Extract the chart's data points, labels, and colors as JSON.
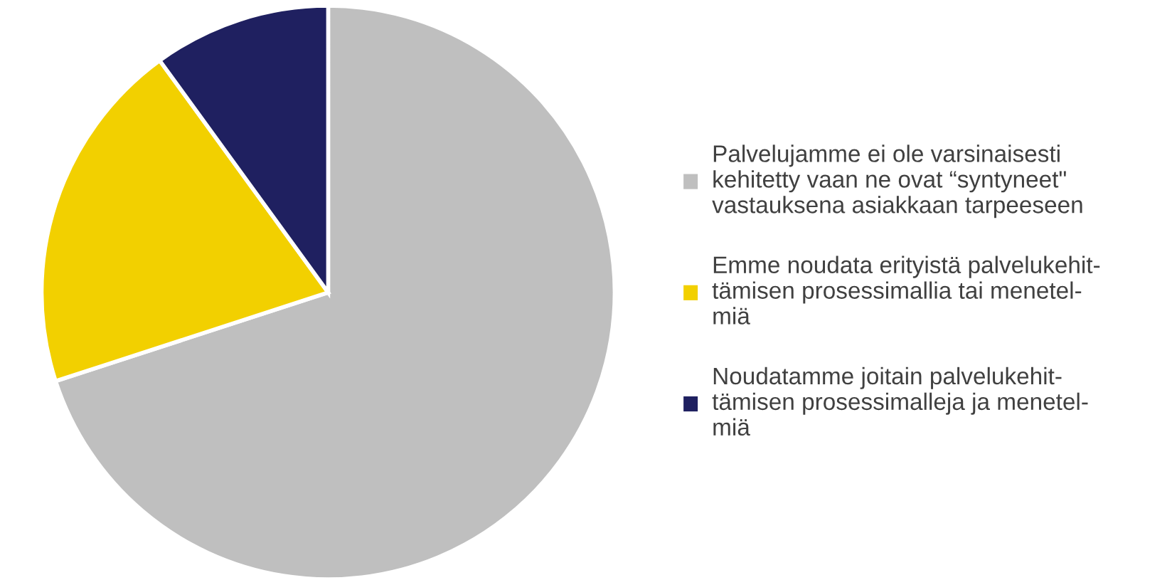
{
  "chart_data": {
    "type": "pie",
    "categories": [
      "Palvelujamme ei ole varsinaisesti\nkehitetty vaan ne ovat “syntyneet\"\nvastauksena asiakkaan tarpeeseen",
      "Emme noudata erityistä palvelukehit-\ntämisen prosessimallia tai menetel-\nmiä",
      "Noudatamme joitain palvelukehit-\ntämisen prosessimalleja ja menetel-\nmiä"
    ],
    "values": [
      70,
      20,
      10
    ],
    "colors": [
      "#bfbfbf",
      "#f2d000",
      "#1f2060"
    ],
    "legend": "right"
  }
}
